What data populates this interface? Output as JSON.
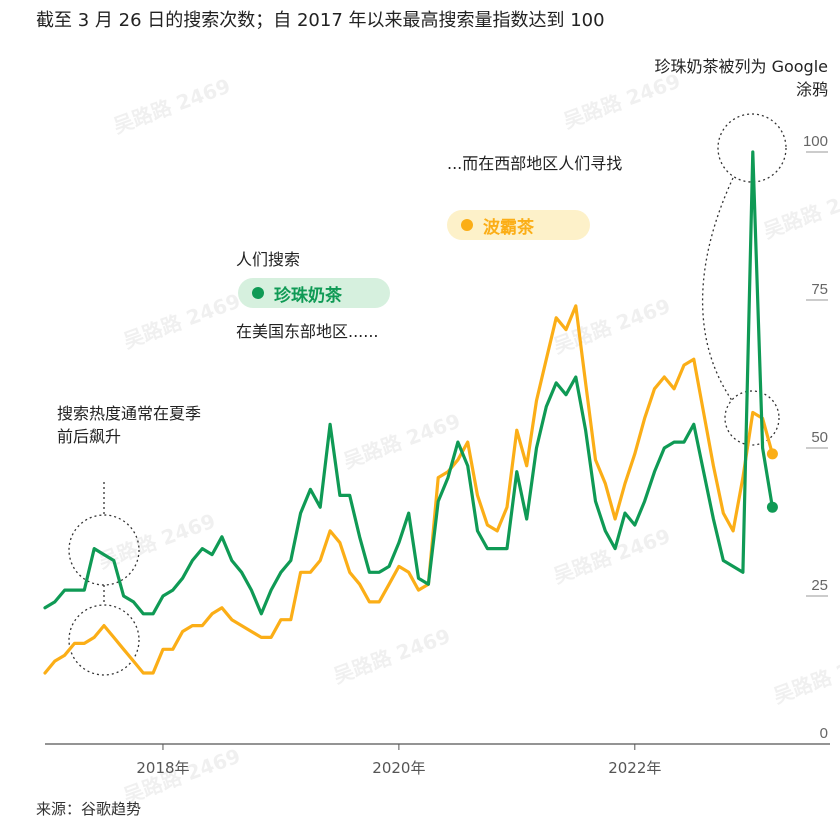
{
  "title": "截至 3 月 26 日的搜索次数；自 2017 年以来最高搜索量指数达到 100",
  "annotations": {
    "doodle_line1": "珍珠奶茶被列为 Google",
    "doodle_line2": "涂鸦",
    "west": "...而在西部地区人们寻找",
    "search": "人们搜索",
    "east": "在美国东部地区......",
    "summer_line1": "搜索热度通常在夏季",
    "summer_line2": "前后飙升"
  },
  "source": "来源：谷歌趋势",
  "watermark": "吴路路 2469",
  "colors": {
    "green": "#0f9a55",
    "orange": "#fbae17",
    "green_pill": "#d6f0de",
    "orange_pill": "#fdf1c9"
  },
  "chart_data": {
    "type": "line",
    "x_start": "2017-01",
    "x_end": "2023-03",
    "frequency": "monthly",
    "x_ticks": [
      "2018年",
      "2020年",
      "2022年"
    ],
    "y_ticks": [
      "0",
      "25",
      "50",
      "75",
      "100"
    ],
    "ylim": [
      0,
      100
    ],
    "y_axis_side": "right",
    "series": [
      {
        "name": "珍珠奶茶",
        "color": "#0f9a55",
        "values": [
          23,
          24,
          26,
          26,
          26,
          33,
          32,
          31,
          25,
          24,
          22,
          22,
          25,
          26,
          28,
          31,
          33,
          32,
          35,
          31,
          29,
          26,
          22,
          26,
          29,
          31,
          39,
          43,
          40,
          54,
          42,
          42,
          35,
          29,
          29,
          30,
          34,
          39,
          28,
          27,
          41,
          45,
          51,
          47,
          36,
          33,
          33,
          33,
          46,
          38,
          50,
          57,
          61,
          59,
          62,
          53,
          41,
          36,
          33,
          39,
          37,
          41,
          46,
          50,
          51,
          51,
          54,
          46,
          38,
          31,
          30,
          29,
          100,
          50,
          40
        ]
      },
      {
        "name": "波霸茶",
        "color": "#fbae17",
        "values": [
          12,
          14,
          15,
          17,
          17,
          18,
          20,
          18,
          16,
          14,
          12,
          12,
          16,
          16,
          19,
          20,
          20,
          22,
          23,
          21,
          20,
          19,
          18,
          18,
          21,
          21,
          29,
          29,
          31,
          36,
          34,
          29,
          27,
          24,
          24,
          27,
          30,
          29,
          26,
          27,
          45,
          46,
          48,
          51,
          42,
          37,
          36,
          40,
          53,
          47,
          58,
          65,
          72,
          70,
          74,
          61,
          48,
          44,
          38,
          44,
          49,
          55,
          60,
          62,
          60,
          64,
          65,
          56,
          47,
          39,
          36,
          45,
          56,
          55,
          49
        ]
      }
    ]
  }
}
